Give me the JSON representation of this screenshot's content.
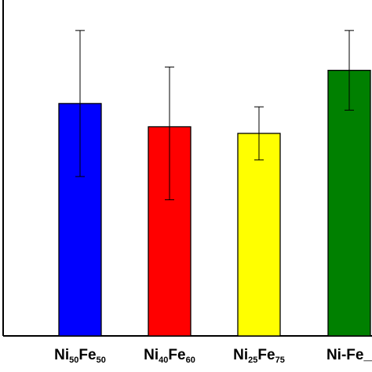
{
  "chart_data": {
    "type": "bar",
    "title": "",
    "xlabel": "",
    "ylabel": "",
    "ylim": [
      0,
      100
    ],
    "grid": false,
    "legend": "none",
    "categories": [
      {
        "base": "Ni",
        "sub1": "50",
        "mid": "Fe",
        "sub2": "50"
      },
      {
        "base": "Ni",
        "sub1": "40",
        "mid": "Fe",
        "sub2": "60"
      },
      {
        "base": "Ni",
        "sub1": "25",
        "mid": "Fe",
        "sub2": "75"
      },
      {
        "base": "Ni-Fe_",
        "sub1": "",
        "mid": "",
        "sub2": ""
      }
    ],
    "values": [
      70,
      63,
      61,
      80
    ],
    "error_low": [
      22,
      22,
      8,
      12
    ],
    "error_high": [
      22,
      18,
      8,
      12
    ],
    "colors": [
      "#0000FF",
      "#FF0000",
      "#FFFF00",
      "#008000"
    ]
  }
}
